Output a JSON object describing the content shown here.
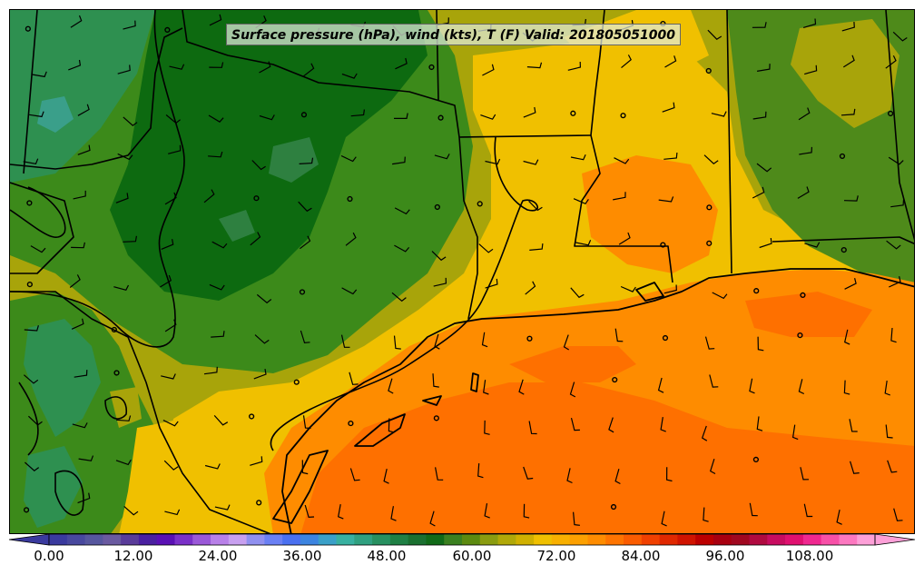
{
  "title": "Surface pressure (hPa), wind (kts), T (F) Valid: 201805051000",
  "colorbar": {
    "ticks": [
      "0.00",
      "12.00",
      "24.00",
      "36.00",
      "48.00",
      "60.00",
      "72.00",
      "84.00",
      "96.00",
      "108.00"
    ],
    "colors": [
      "#3a3a9e",
      "#48489e",
      "#56569e",
      "#6a5aa0",
      "#5a3c9a",
      "#4a20a0",
      "#5a10b4",
      "#7a30c8",
      "#9a58d8",
      "#b880e8",
      "#c8a0f0",
      "#9090f0",
      "#6a80f4",
      "#4a70f0",
      "#3c84e0",
      "#3aa0c8",
      "#38b0a0",
      "#30a080",
      "#289060",
      "#1f8044",
      "#1a7030",
      "#106a18",
      "#3a8020",
      "#5c8a10",
      "#8a9c10",
      "#b0a808",
      "#d0b000",
      "#f0c000",
      "#f8b000",
      "#fca000",
      "#fe8c00",
      "#fe7400",
      "#fa5c00",
      "#f04000",
      "#e02800",
      "#d01400",
      "#bc0000",
      "#a80010",
      "#a00820",
      "#b00a40",
      "#c80c60",
      "#e01070",
      "#f02890",
      "#f850a8",
      "#fc78c0",
      "#fda0d8"
    ]
  },
  "legend_colors": {
    "deep_green": "#0d6a10",
    "mid_green": "#3c8a1a",
    "olive": "#a8a40a",
    "yellow": "#f0c000",
    "orange": "#fe8c00",
    "dark_orange": "#fe7000"
  }
}
